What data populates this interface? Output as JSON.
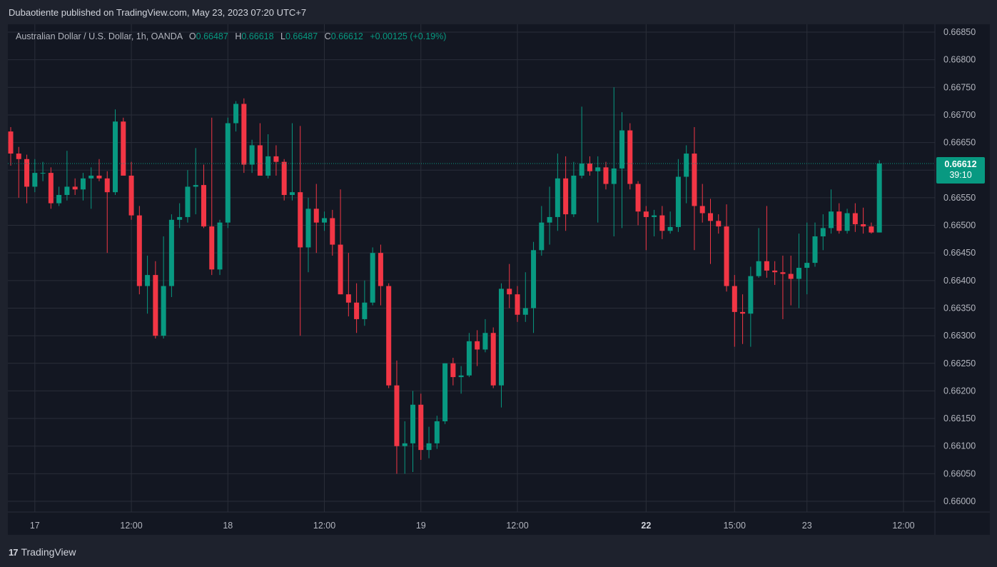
{
  "header": {
    "publisher_line": "Dubaotiente published on TradingView.com, May 23, 2023 07:20 UTC+7"
  },
  "legend": {
    "symbol": "Australian Dollar / U.S. Dollar, 1h, OANDA",
    "open_label": "O",
    "open": "0.66487",
    "high_label": "H",
    "high": "0.66618",
    "low_label": "L",
    "low": "0.66487",
    "close_label": "C",
    "close": "0.66612",
    "change": "+0.00125 (+0.19%)"
  },
  "last_price": {
    "value": "0.66612",
    "countdown": "39:10"
  },
  "footer": {
    "logo_text": "TradingView",
    "logo_mark": "17"
  },
  "colors": {
    "up": "#089981",
    "down": "#f23645",
    "background": "#131722",
    "grid": "#2a2e39",
    "axis_text": "#b2b5be"
  },
  "chart_data": {
    "type": "candlestick",
    "title": "Australian Dollar / U.S. Dollar, 1h, OANDA",
    "xlabel": "",
    "ylabel": "",
    "ylim": [
      0.65975,
      0.66865
    ],
    "y_ticks": [
      "0.66850",
      "0.66800",
      "0.66750",
      "0.66700",
      "0.66650",
      "0.66600",
      "0.66550",
      "0.66500",
      "0.66450",
      "0.66400",
      "0.66350",
      "0.66300",
      "0.66250",
      "0.66200",
      "0.66150",
      "0.66100",
      "0.66050",
      "0.66000"
    ],
    "x_ticks": [
      {
        "label": "17",
        "index": 3,
        "bold": false
      },
      {
        "label": "12:00",
        "index": 15,
        "bold": false
      },
      {
        "label": "18",
        "index": 27,
        "bold": false
      },
      {
        "label": "12:00",
        "index": 39,
        "bold": false
      },
      {
        "label": "19",
        "index": 51,
        "bold": false
      },
      {
        "label": "12:00",
        "index": 63,
        "bold": false
      },
      {
        "label": "22",
        "index": 79,
        "bold": true
      },
      {
        "label": "15:00",
        "index": 90,
        "bold": false
      },
      {
        "label": "23",
        "index": 99,
        "bold": false
      },
      {
        "label": "12:00",
        "index": 111,
        "bold": false
      }
    ],
    "grid": true,
    "candles": [
      {
        "o": 0.6667,
        "h": 0.66678,
        "l": 0.66608,
        "c": 0.6663
      },
      {
        "o": 0.6663,
        "h": 0.66642,
        "l": 0.6655,
        "c": 0.6662
      },
      {
        "o": 0.6662,
        "h": 0.66628,
        "l": 0.6654,
        "c": 0.6657
      },
      {
        "o": 0.6657,
        "h": 0.6662,
        "l": 0.6656,
        "c": 0.66595
      },
      {
        "o": 0.66595,
        "h": 0.66615,
        "l": 0.6658,
        "c": 0.66595
      },
      {
        "o": 0.66595,
        "h": 0.66605,
        "l": 0.6653,
        "c": 0.6654
      },
      {
        "o": 0.6654,
        "h": 0.6657,
        "l": 0.66535,
        "c": 0.66555
      },
      {
        "o": 0.66555,
        "h": 0.66635,
        "l": 0.66545,
        "c": 0.6657
      },
      {
        "o": 0.6657,
        "h": 0.66585,
        "l": 0.66555,
        "c": 0.66565
      },
      {
        "o": 0.66565,
        "h": 0.66595,
        "l": 0.66545,
        "c": 0.66585
      },
      {
        "o": 0.66585,
        "h": 0.66605,
        "l": 0.6653,
        "c": 0.6659
      },
      {
        "o": 0.6659,
        "h": 0.6662,
        "l": 0.6658,
        "c": 0.66585
      },
      {
        "o": 0.66585,
        "h": 0.66598,
        "l": 0.6645,
        "c": 0.6656
      },
      {
        "o": 0.6656,
        "h": 0.6671,
        "l": 0.66555,
        "c": 0.66688
      },
      {
        "o": 0.66688,
        "h": 0.66695,
        "l": 0.66595,
        "c": 0.6659
      },
      {
        "o": 0.6659,
        "h": 0.66615,
        "l": 0.6651,
        "c": 0.66518
      },
      {
        "o": 0.66518,
        "h": 0.66535,
        "l": 0.66375,
        "c": 0.6639
      },
      {
        "o": 0.6639,
        "h": 0.66445,
        "l": 0.6634,
        "c": 0.6641
      },
      {
        "o": 0.6641,
        "h": 0.66435,
        "l": 0.66295,
        "c": 0.663
      },
      {
        "o": 0.663,
        "h": 0.6648,
        "l": 0.66295,
        "c": 0.6639
      },
      {
        "o": 0.6639,
        "h": 0.6652,
        "l": 0.6637,
        "c": 0.6651
      },
      {
        "o": 0.6651,
        "h": 0.6654,
        "l": 0.66495,
        "c": 0.66515
      },
      {
        "o": 0.66515,
        "h": 0.666,
        "l": 0.66505,
        "c": 0.6657
      },
      {
        "o": 0.6657,
        "h": 0.6664,
        "l": 0.6652,
        "c": 0.66573
      },
      {
        "o": 0.66573,
        "h": 0.6661,
        "l": 0.66495,
        "c": 0.66498
      },
      {
        "o": 0.66498,
        "h": 0.66695,
        "l": 0.6641,
        "c": 0.6642
      },
      {
        "o": 0.6642,
        "h": 0.6651,
        "l": 0.6641,
        "c": 0.66505
      },
      {
        "o": 0.66505,
        "h": 0.66695,
        "l": 0.66495,
        "c": 0.66685
      },
      {
        "o": 0.66685,
        "h": 0.66725,
        "l": 0.6667,
        "c": 0.6672
      },
      {
        "o": 0.6672,
        "h": 0.6673,
        "l": 0.66595,
        "c": 0.6661
      },
      {
        "o": 0.6661,
        "h": 0.66655,
        "l": 0.66595,
        "c": 0.66645
      },
      {
        "o": 0.66645,
        "h": 0.66685,
        "l": 0.6659,
        "c": 0.6659
      },
      {
        "o": 0.6659,
        "h": 0.66665,
        "l": 0.66585,
        "c": 0.66625
      },
      {
        "o": 0.66625,
        "h": 0.66645,
        "l": 0.6659,
        "c": 0.66615
      },
      {
        "o": 0.66615,
        "h": 0.6662,
        "l": 0.66545,
        "c": 0.66555
      },
      {
        "o": 0.66555,
        "h": 0.66685,
        "l": 0.66545,
        "c": 0.6656
      },
      {
        "o": 0.6656,
        "h": 0.6668,
        "l": 0.663,
        "c": 0.6646
      },
      {
        "o": 0.6646,
        "h": 0.6655,
        "l": 0.66415,
        "c": 0.6653
      },
      {
        "o": 0.6653,
        "h": 0.66575,
        "l": 0.6645,
        "c": 0.66505
      },
      {
        "o": 0.66505,
        "h": 0.66525,
        "l": 0.6649,
        "c": 0.66513
      },
      {
        "o": 0.66513,
        "h": 0.66528,
        "l": 0.66445,
        "c": 0.66465
      },
      {
        "o": 0.66465,
        "h": 0.66565,
        "l": 0.66375,
        "c": 0.66375
      },
      {
        "o": 0.66375,
        "h": 0.6645,
        "l": 0.66335,
        "c": 0.6636
      },
      {
        "o": 0.6636,
        "h": 0.66395,
        "l": 0.66305,
        "c": 0.6633
      },
      {
        "o": 0.6633,
        "h": 0.664,
        "l": 0.66318,
        "c": 0.6636
      },
      {
        "o": 0.6636,
        "h": 0.6646,
        "l": 0.66355,
        "c": 0.6645
      },
      {
        "o": 0.6645,
        "h": 0.66465,
        "l": 0.66355,
        "c": 0.6639
      },
      {
        "o": 0.6639,
        "h": 0.66395,
        "l": 0.66205,
        "c": 0.6621
      },
      {
        "o": 0.6621,
        "h": 0.66255,
        "l": 0.6605,
        "c": 0.661
      },
      {
        "o": 0.661,
        "h": 0.66145,
        "l": 0.6605,
        "c": 0.66105
      },
      {
        "o": 0.66105,
        "h": 0.662,
        "l": 0.66053,
        "c": 0.66175
      },
      {
        "o": 0.66175,
        "h": 0.66195,
        "l": 0.66075,
        "c": 0.66093
      },
      {
        "o": 0.66093,
        "h": 0.66135,
        "l": 0.66078,
        "c": 0.66105
      },
      {
        "o": 0.66105,
        "h": 0.66155,
        "l": 0.66095,
        "c": 0.66145
      },
      {
        "o": 0.66145,
        "h": 0.6625,
        "l": 0.6614,
        "c": 0.6625
      },
      {
        "o": 0.6625,
        "h": 0.6626,
        "l": 0.6621,
        "c": 0.66225
      },
      {
        "o": 0.66225,
        "h": 0.66245,
        "l": 0.66195,
        "c": 0.66228
      },
      {
        "o": 0.66228,
        "h": 0.66305,
        "l": 0.66225,
        "c": 0.6629
      },
      {
        "o": 0.6629,
        "h": 0.6631,
        "l": 0.66245,
        "c": 0.66275
      },
      {
        "o": 0.66275,
        "h": 0.6633,
        "l": 0.6627,
        "c": 0.66305
      },
      {
        "o": 0.66305,
        "h": 0.66315,
        "l": 0.66205,
        "c": 0.6621
      },
      {
        "o": 0.6621,
        "h": 0.66395,
        "l": 0.6617,
        "c": 0.66385
      },
      {
        "o": 0.66385,
        "h": 0.6643,
        "l": 0.6635,
        "c": 0.66375
      },
      {
        "o": 0.66375,
        "h": 0.6639,
        "l": 0.66325,
        "c": 0.66338
      },
      {
        "o": 0.66338,
        "h": 0.66415,
        "l": 0.66325,
        "c": 0.6635
      },
      {
        "o": 0.6635,
        "h": 0.6647,
        "l": 0.66305,
        "c": 0.66455
      },
      {
        "o": 0.66455,
        "h": 0.66535,
        "l": 0.66445,
        "c": 0.66505
      },
      {
        "o": 0.66505,
        "h": 0.6657,
        "l": 0.66465,
        "c": 0.66515
      },
      {
        "o": 0.66515,
        "h": 0.6663,
        "l": 0.6649,
        "c": 0.66585
      },
      {
        "o": 0.66585,
        "h": 0.66625,
        "l": 0.6649,
        "c": 0.6652
      },
      {
        "o": 0.6652,
        "h": 0.66615,
        "l": 0.66515,
        "c": 0.6659
      },
      {
        "o": 0.6659,
        "h": 0.66715,
        "l": 0.66585,
        "c": 0.66612
      },
      {
        "o": 0.66612,
        "h": 0.66625,
        "l": 0.6659,
        "c": 0.66598
      },
      {
        "o": 0.66598,
        "h": 0.66625,
        "l": 0.66505,
        "c": 0.66605
      },
      {
        "o": 0.66605,
        "h": 0.66615,
        "l": 0.66565,
        "c": 0.66575
      },
      {
        "o": 0.66575,
        "h": 0.6675,
        "l": 0.6648,
        "c": 0.66603
      },
      {
        "o": 0.66603,
        "h": 0.66705,
        "l": 0.66495,
        "c": 0.66672
      },
      {
        "o": 0.66672,
        "h": 0.66685,
        "l": 0.66565,
        "c": 0.66575
      },
      {
        "o": 0.66575,
        "h": 0.6658,
        "l": 0.665,
        "c": 0.66525
      },
      {
        "o": 0.66525,
        "h": 0.66535,
        "l": 0.66455,
        "c": 0.66515
      },
      {
        "o": 0.66515,
        "h": 0.66528,
        "l": 0.6648,
        "c": 0.66518
      },
      {
        "o": 0.66518,
        "h": 0.66535,
        "l": 0.66475,
        "c": 0.6649
      },
      {
        "o": 0.6649,
        "h": 0.66525,
        "l": 0.66485,
        "c": 0.66497
      },
      {
        "o": 0.66497,
        "h": 0.6662,
        "l": 0.66488,
        "c": 0.66588
      },
      {
        "o": 0.66588,
        "h": 0.66645,
        "l": 0.6654,
        "c": 0.6663
      },
      {
        "o": 0.6663,
        "h": 0.66678,
        "l": 0.66455,
        "c": 0.66535
      },
      {
        "o": 0.66535,
        "h": 0.66575,
        "l": 0.66505,
        "c": 0.66522
      },
      {
        "o": 0.66522,
        "h": 0.66548,
        "l": 0.6643,
        "c": 0.66508
      },
      {
        "o": 0.66508,
        "h": 0.6652,
        "l": 0.66485,
        "c": 0.66498
      },
      {
        "o": 0.66498,
        "h": 0.66538,
        "l": 0.6638,
        "c": 0.6639
      },
      {
        "o": 0.6639,
        "h": 0.6641,
        "l": 0.6628,
        "c": 0.66343
      },
      {
        "o": 0.66343,
        "h": 0.66375,
        "l": 0.66285,
        "c": 0.6634
      },
      {
        "o": 0.6634,
        "h": 0.66425,
        "l": 0.6628,
        "c": 0.66408
      },
      {
        "o": 0.66408,
        "h": 0.66495,
        "l": 0.66405,
        "c": 0.66435
      },
      {
        "o": 0.66435,
        "h": 0.66535,
        "l": 0.66405,
        "c": 0.66418
      },
      {
        "o": 0.66418,
        "h": 0.66435,
        "l": 0.66392,
        "c": 0.66415
      },
      {
        "o": 0.66415,
        "h": 0.66445,
        "l": 0.6633,
        "c": 0.66412
      },
      {
        "o": 0.66412,
        "h": 0.66445,
        "l": 0.66355,
        "c": 0.66403
      },
      {
        "o": 0.66403,
        "h": 0.66485,
        "l": 0.6635,
        "c": 0.66423
      },
      {
        "o": 0.66423,
        "h": 0.66505,
        "l": 0.66375,
        "c": 0.66432
      },
      {
        "o": 0.66432,
        "h": 0.66505,
        "l": 0.66425,
        "c": 0.6648
      },
      {
        "o": 0.6648,
        "h": 0.6652,
        "l": 0.66455,
        "c": 0.66495
      },
      {
        "o": 0.66495,
        "h": 0.66565,
        "l": 0.66485,
        "c": 0.66525
      },
      {
        "o": 0.66525,
        "h": 0.6654,
        "l": 0.66485,
        "c": 0.6649
      },
      {
        "o": 0.6649,
        "h": 0.6653,
        "l": 0.66485,
        "c": 0.66522
      },
      {
        "o": 0.66522,
        "h": 0.6654,
        "l": 0.66488,
        "c": 0.66502
      },
      {
        "o": 0.66502,
        "h": 0.66532,
        "l": 0.66485,
        "c": 0.66498
      },
      {
        "o": 0.66498,
        "h": 0.66505,
        "l": 0.66485,
        "c": 0.66487
      },
      {
        "o": 0.66487,
        "h": 0.66618,
        "l": 0.66487,
        "c": 0.66612
      }
    ]
  }
}
